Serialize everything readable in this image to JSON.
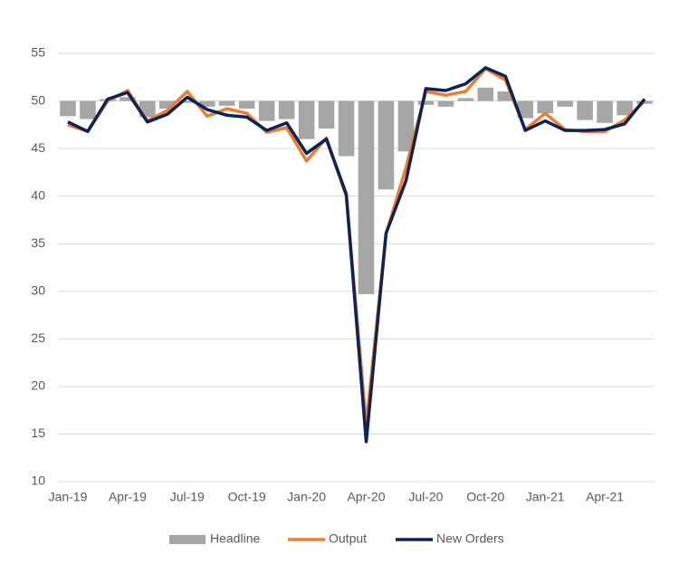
{
  "chart_data": {
    "type": "bar-line",
    "categories": [
      "Jan-19",
      null,
      null,
      "Apr-19",
      null,
      null,
      "Jul-19",
      null,
      null,
      "Oct-19",
      null,
      null,
      "Jan-20",
      null,
      null,
      "Apr-20",
      null,
      null,
      "Jul-20",
      null,
      null,
      "Oct-20",
      null,
      null,
      "Jan-21",
      null,
      null,
      "Apr-21",
      null,
      null
    ],
    "ylim": [
      10,
      55
    ],
    "yticks": [
      10,
      15,
      20,
      25,
      30,
      35,
      40,
      45,
      50,
      55
    ],
    "grid": true,
    "bar_baseline": 50,
    "legend": "bottom",
    "series": [
      {
        "name": "Headline",
        "type": "bar",
        "color": "#a6a6a6",
        "values": [
          48.4,
          48.1,
          50.2,
          50.4,
          48.3,
          49.2,
          49.8,
          49.4,
          49.5,
          49.2,
          47.9,
          48.1,
          46.0,
          47.1,
          44.2,
          29.7,
          40.7,
          44.7,
          49.6,
          49.4,
          50.3,
          51.4,
          51.0,
          48.2,
          48.7,
          49.4,
          48.0,
          47.7,
          48.5,
          49.7
        ]
      },
      {
        "name": "Output",
        "type": "line",
        "color": "#ed7d31",
        "values": [
          47.5,
          46.8,
          50.0,
          51.1,
          47.9,
          49.0,
          51.0,
          48.4,
          49.2,
          48.7,
          46.7,
          47.2,
          43.7,
          46.1,
          40.0,
          16.0,
          36.0,
          43.0,
          51.0,
          50.6,
          51.0,
          53.4,
          52.2,
          47.0,
          48.7,
          47.0,
          46.8,
          46.8,
          48.0,
          50.0
        ]
      },
      {
        "name": "New Orders",
        "type": "line",
        "color": "#0c2356",
        "values": [
          47.8,
          46.8,
          50.2,
          50.9,
          47.8,
          48.6,
          50.4,
          49.1,
          48.5,
          48.3,
          46.9,
          47.7,
          44.5,
          46.0,
          40.2,
          14.2,
          36.1,
          41.6,
          51.3,
          51.1,
          51.8,
          53.5,
          52.6,
          46.9,
          47.9,
          46.9,
          46.9,
          47.0,
          47.6,
          50.2
        ]
      }
    ]
  }
}
